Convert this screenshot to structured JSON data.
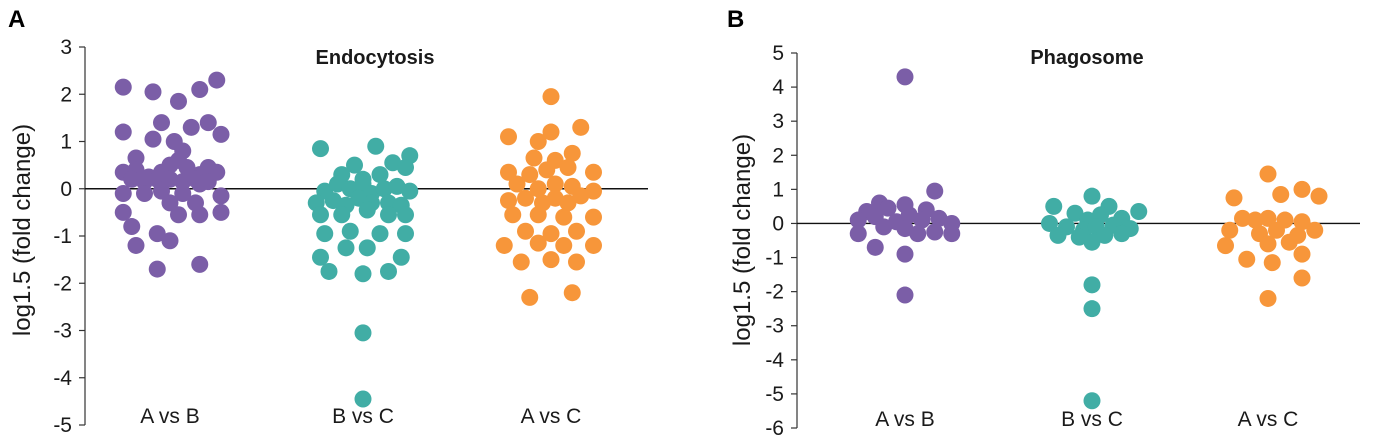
{
  "chart_data": [
    {
      "type": "scatter",
      "panel_label": "A",
      "title": "Endocytosis",
      "ylabel": "log1.5 (fold change)",
      "xlabel": "",
      "ylim": [
        -5,
        3
      ],
      "yticks": [
        "3",
        "2",
        "1",
        "0",
        "-1",
        "-2",
        "-3",
        "-4",
        "-5"
      ],
      "categories": [
        "A vs B",
        "B vs C",
        "A vs C"
      ],
      "reference_line": 0,
      "series": [
        {
          "name": "A vs B",
          "color": "#7B5EA7",
          "points": [
            [
              -0.55,
              2.15
            ],
            [
              -0.2,
              2.05
            ],
            [
              0.1,
              1.85
            ],
            [
              0.35,
              2.1
            ],
            [
              0.55,
              2.3
            ],
            [
              -0.55,
              1.2
            ],
            [
              -0.2,
              1.05
            ],
            [
              0.05,
              1.0
            ],
            [
              0.25,
              1.3
            ],
            [
              0.45,
              1.4
            ],
            [
              0.6,
              1.15
            ],
            [
              -0.1,
              1.4
            ],
            [
              -0.4,
              0.65
            ],
            [
              0.15,
              0.8
            ],
            [
              -0.55,
              0.35
            ],
            [
              -0.4,
              0.4
            ],
            [
              -0.25,
              0.25
            ],
            [
              -0.1,
              0.35
            ],
            [
              0.0,
              0.5
            ],
            [
              0.1,
              0.6
            ],
            [
              0.2,
              0.45
            ],
            [
              0.35,
              0.3
            ],
            [
              0.45,
              0.45
            ],
            [
              0.55,
              0.35
            ],
            [
              -0.45,
              0.2
            ],
            [
              -0.3,
              0.15
            ],
            [
              -0.15,
              0.2
            ],
            [
              0.0,
              0.2
            ],
            [
              0.15,
              0.15
            ],
            [
              0.3,
              0.2
            ],
            [
              0.45,
              0.15
            ],
            [
              -0.55,
              -0.1
            ],
            [
              -0.3,
              -0.1
            ],
            [
              -0.1,
              -0.05
            ],
            [
              0.15,
              -0.1
            ],
            [
              0.35,
              0.1
            ],
            [
              0.6,
              -0.15
            ],
            [
              0.0,
              -0.3
            ],
            [
              0.3,
              -0.3
            ],
            [
              -0.55,
              -0.5
            ],
            [
              0.1,
              -0.55
            ],
            [
              0.35,
              -0.55
            ],
            [
              0.6,
              -0.5
            ],
            [
              -0.45,
              -0.8
            ],
            [
              -0.15,
              -0.95
            ],
            [
              -0.4,
              -1.2
            ],
            [
              0.0,
              -1.1
            ],
            [
              -0.15,
              -1.7
            ],
            [
              0.35,
              -1.6
            ]
          ]
        },
        {
          "name": "B vs C",
          "color": "#41ADA5",
          "points": [
            [
              -0.5,
              0.85
            ],
            [
              0.15,
              0.9
            ],
            [
              -0.1,
              0.5
            ],
            [
              0.35,
              0.55
            ],
            [
              0.55,
              0.7
            ],
            [
              -0.25,
              0.3
            ],
            [
              0.0,
              0.2
            ],
            [
              0.2,
              0.3
            ],
            [
              0.5,
              0.45
            ],
            [
              -0.45,
              -0.05
            ],
            [
              -0.3,
              0.1
            ],
            [
              -0.15,
              0.0
            ],
            [
              0.0,
              0.1
            ],
            [
              0.1,
              -0.1
            ],
            [
              0.25,
              0.0
            ],
            [
              0.4,
              0.05
            ],
            [
              0.55,
              -0.05
            ],
            [
              -0.55,
              -0.3
            ],
            [
              -0.35,
              -0.25
            ],
            [
              -0.2,
              -0.35
            ],
            [
              -0.05,
              -0.2
            ],
            [
              0.1,
              -0.3
            ],
            [
              0.3,
              -0.3
            ],
            [
              0.45,
              -0.35
            ],
            [
              -0.5,
              -0.55
            ],
            [
              -0.25,
              -0.55
            ],
            [
              0.05,
              -0.45
            ],
            [
              0.3,
              -0.55
            ],
            [
              0.5,
              -0.55
            ],
            [
              -0.45,
              -0.95
            ],
            [
              -0.15,
              -0.9
            ],
            [
              0.2,
              -0.95
            ],
            [
              0.5,
              -0.95
            ],
            [
              -0.5,
              -1.45
            ],
            [
              -0.2,
              -1.25
            ],
            [
              0.05,
              -1.25
            ],
            [
              0.45,
              -1.45
            ],
            [
              -0.4,
              -1.75
            ],
            [
              0.0,
              -1.8
            ],
            [
              0.3,
              -1.75
            ],
            [
              0.0,
              -3.05
            ],
            [
              0.0,
              -4.45
            ]
          ]
        },
        {
          "name": "A vs C",
          "color": "#F7963A",
          "points": [
            [
              0.0,
              1.95
            ],
            [
              -0.5,
              1.1
            ],
            [
              -0.15,
              1.0
            ],
            [
              0.0,
              1.2
            ],
            [
              0.35,
              1.3
            ],
            [
              -0.2,
              0.65
            ],
            [
              0.05,
              0.6
            ],
            [
              0.25,
              0.75
            ],
            [
              -0.5,
              0.35
            ],
            [
              -0.25,
              0.3
            ],
            [
              -0.05,
              0.4
            ],
            [
              0.2,
              0.45
            ],
            [
              0.5,
              0.35
            ],
            [
              -0.4,
              0.1
            ],
            [
              -0.15,
              0.0
            ],
            [
              0.05,
              0.1
            ],
            [
              0.25,
              0.05
            ],
            [
              0.5,
              -0.05
            ],
            [
              -0.5,
              -0.25
            ],
            [
              -0.3,
              -0.2
            ],
            [
              -0.1,
              -0.3
            ],
            [
              0.05,
              -0.2
            ],
            [
              0.2,
              -0.3
            ],
            [
              0.35,
              -0.15
            ],
            [
              -0.45,
              -0.55
            ],
            [
              -0.15,
              -0.55
            ],
            [
              0.15,
              -0.6
            ],
            [
              0.5,
              -0.6
            ],
            [
              -0.3,
              -0.9
            ],
            [
              0.0,
              -0.95
            ],
            [
              0.3,
              -0.9
            ],
            [
              -0.55,
              -1.2
            ],
            [
              -0.15,
              -1.15
            ],
            [
              0.15,
              -1.2
            ],
            [
              0.5,
              -1.2
            ],
            [
              -0.35,
              -1.55
            ],
            [
              0.0,
              -1.5
            ],
            [
              0.3,
              -1.55
            ],
            [
              -0.25,
              -2.3
            ],
            [
              0.25,
              -2.2
            ]
          ]
        }
      ]
    },
    {
      "type": "scatter",
      "panel_label": "B",
      "title": "Phagosome",
      "ylabel": "log1.5 (fold change)",
      "xlabel": "",
      "ylim": [
        -6,
        5
      ],
      "yticks": [
        "5",
        "4",
        "3",
        "2",
        "1",
        "0",
        "-1",
        "-2",
        "-3",
        "-4",
        "-5",
        "-6"
      ],
      "categories": [
        "A vs B",
        "B vs C",
        "A vs C"
      ],
      "reference_line": 0,
      "series": [
        {
          "name": "A vs B",
          "color": "#7B5EA7",
          "points": [
            [
              0.0,
              4.3
            ],
            [
              -0.3,
              0.6
            ],
            [
              0.35,
              0.95
            ],
            [
              -0.45,
              0.35
            ],
            [
              -0.2,
              0.45
            ],
            [
              0.0,
              0.55
            ],
            [
              0.25,
              0.4
            ],
            [
              -0.55,
              0.1
            ],
            [
              -0.35,
              0.2
            ],
            [
              -0.1,
              0.05
            ],
            [
              0.05,
              0.25
            ],
            [
              0.2,
              0.1
            ],
            [
              0.4,
              0.15
            ],
            [
              0.55,
              0.0
            ],
            [
              -0.55,
              -0.3
            ],
            [
              -0.25,
              -0.1
            ],
            [
              0.0,
              -0.15
            ],
            [
              0.15,
              -0.3
            ],
            [
              0.35,
              -0.25
            ],
            [
              0.55,
              -0.3
            ],
            [
              -0.35,
              -0.7
            ],
            [
              0.0,
              -0.9
            ],
            [
              0.0,
              -2.1
            ]
          ]
        },
        {
          "name": "B vs C",
          "color": "#41ADA5",
          "points": [
            [
              -0.45,
              0.5
            ],
            [
              0.0,
              0.8
            ],
            [
              0.2,
              0.5
            ],
            [
              -0.2,
              0.3
            ],
            [
              -0.05,
              0.1
            ],
            [
              0.1,
              0.25
            ],
            [
              0.35,
              0.15
            ],
            [
              0.55,
              0.35
            ],
            [
              -0.5,
              0.0
            ],
            [
              -0.3,
              -0.1
            ],
            [
              -0.1,
              -0.2
            ],
            [
              0.05,
              -0.1
            ],
            [
              0.25,
              -0.05
            ],
            [
              0.45,
              -0.15
            ],
            [
              -0.4,
              -0.35
            ],
            [
              -0.15,
              -0.4
            ],
            [
              0.15,
              -0.35
            ],
            [
              0.35,
              -0.3
            ],
            [
              0.0,
              -0.55
            ],
            [
              0.0,
              -1.8
            ],
            [
              0.0,
              -2.5
            ],
            [
              0.0,
              -5.2
            ]
          ]
        },
        {
          "name": "A vs C",
          "color": "#F7963A",
          "points": [
            [
              0.0,
              1.45
            ],
            [
              -0.4,
              0.75
            ],
            [
              0.15,
              0.85
            ],
            [
              0.4,
              1.0
            ],
            [
              0.6,
              0.8
            ],
            [
              -0.3,
              0.15
            ],
            [
              -0.15,
              0.1
            ],
            [
              0.0,
              0.15
            ],
            [
              0.2,
              0.1
            ],
            [
              0.4,
              0.05
            ],
            [
              -0.45,
              -0.2
            ],
            [
              -0.1,
              -0.3
            ],
            [
              0.1,
              -0.2
            ],
            [
              0.35,
              -0.35
            ],
            [
              0.55,
              -0.2
            ],
            [
              -0.5,
              -0.65
            ],
            [
              0.0,
              -0.6
            ],
            [
              0.25,
              -0.55
            ],
            [
              0.4,
              -0.9
            ],
            [
              -0.25,
              -1.05
            ],
            [
              0.05,
              -1.15
            ],
            [
              0.4,
              -1.6
            ],
            [
              0.0,
              -2.2
            ]
          ]
        }
      ]
    }
  ]
}
